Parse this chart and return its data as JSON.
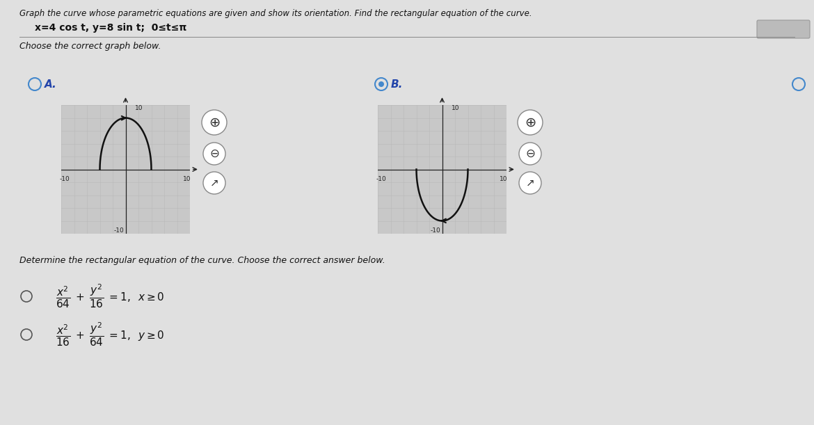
{
  "title_line1": "Graph the curve whose parametric equations are given and show its orientation. Find the rectangular equation of the curve.",
  "param_eq": "x=4 cos t, y=8 sin t;  0≤t≤π",
  "choose_graph_text": "Choose the correct graph below.",
  "option_A_label": "A.",
  "option_B_label": "B.",
  "determine_text": "Determine the rectangular equation of the curve. Choose the correct answer below.",
  "bg_color": "#c8c8c8",
  "page_bg": "#e0e0e0",
  "grid_color": "#b0b0b0",
  "axis_color": "#222222",
  "curve_color": "#111111",
  "radio_color": "#4488cc",
  "label_color": "#2244aa",
  "text_color": "#111111"
}
